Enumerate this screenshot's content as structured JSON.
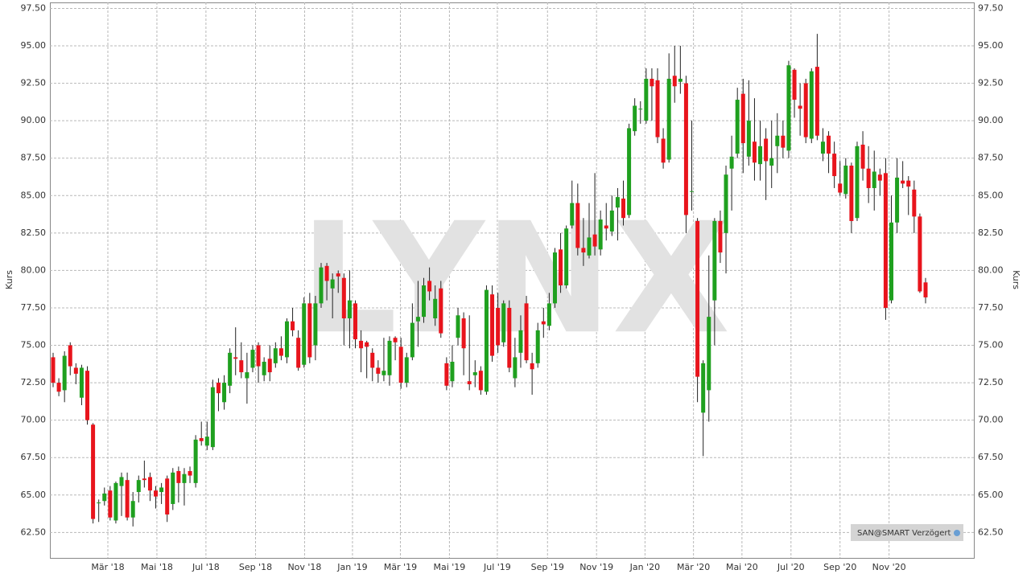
{
  "chart_data": {
    "type": "candlestick",
    "ylabel": "Kurs",
    "y2label": "Kurs",
    "badge": "SAN@SMART Verzögert",
    "watermark": "LYNX",
    "up_color": "#1fa01f",
    "down_color": "#e8141c",
    "grid": true,
    "ylim": [
      60.8,
      97.9
    ],
    "yticks": [
      {
        "value": 62.5,
        "label": "62.50"
      },
      {
        "value": 65,
        "label": "65.00"
      },
      {
        "value": 67.5,
        "label": "67.50"
      },
      {
        "value": 70,
        "label": "70.00"
      },
      {
        "value": 72.5,
        "label": "72.50"
      },
      {
        "value": 75,
        "label": "75.00"
      },
      {
        "value": 77.5,
        "label": "77.50"
      },
      {
        "value": 80,
        "label": "80.00"
      },
      {
        "value": 82.5,
        "label": "82.50"
      },
      {
        "value": 85,
        "label": "85.00"
      },
      {
        "value": 87.5,
        "label": "87.50"
      },
      {
        "value": 90,
        "label": "90.00"
      },
      {
        "value": 92.5,
        "label": "92.50"
      },
      {
        "value": 95,
        "label": "95.00"
      },
      {
        "value": 97.5,
        "label": "97.50"
      }
    ],
    "xticks": [
      {
        "value": 9.6,
        "label": "Mär '18"
      },
      {
        "value": 18.2,
        "label": "Mai '18"
      },
      {
        "value": 26.8,
        "label": "Jul '18"
      },
      {
        "value": 35.5,
        "label": "Sep '18"
      },
      {
        "value": 44.1,
        "label": "Nov '18"
      },
      {
        "value": 52.5,
        "label": "Jan '19"
      },
      {
        "value": 60.9,
        "label": "Mär '19"
      },
      {
        "value": 69.5,
        "label": "Mai '19"
      },
      {
        "value": 77.9,
        "label": "Jul '19"
      },
      {
        "value": 86.7,
        "label": "Sep '19"
      },
      {
        "value": 95.3,
        "label": "Nov '19"
      },
      {
        "value": 103.8,
        "label": "Jan '20"
      },
      {
        "value": 112.3,
        "label": "Mär '20"
      },
      {
        "value": 120.8,
        "label": "Mai '20"
      },
      {
        "value": 129.4,
        "label": "Jul '20"
      },
      {
        "value": 138.0,
        "label": "Sep '20"
      },
      {
        "value": 146.6,
        "label": "Nov '20"
      }
    ],
    "categories": [
      null,
      null,
      null,
      null,
      null,
      null,
      null,
      null,
      null,
      null,
      null,
      null,
      null,
      null,
      null,
      null,
      null,
      null,
      null,
      null,
      null,
      null,
      null,
      null,
      null,
      null,
      null,
      null,
      null,
      null,
      null,
      null,
      null,
      null,
      null,
      null,
      null,
      null,
      null,
      null,
      null,
      null,
      null,
      null,
      null,
      null,
      null,
      null,
      null,
      null,
      null,
      null,
      null,
      null,
      null,
      null,
      null,
      null,
      null,
      null,
      null,
      null,
      null,
      null,
      null,
      null,
      null,
      null,
      null,
      null,
      null,
      null,
      null,
      null,
      null,
      null,
      null,
      null,
      null,
      null,
      null,
      null,
      null,
      null,
      null,
      null,
      null,
      null,
      null,
      null,
      null,
      null,
      null,
      null,
      null,
      null,
      null,
      null,
      null,
      null,
      null,
      null,
      null,
      null,
      null,
      null,
      null,
      null,
      null,
      null,
      null,
      null,
      null,
      null,
      null,
      null,
      null,
      null,
      null,
      null,
      null,
      null,
      null,
      null,
      null,
      null,
      null,
      null,
      null,
      null,
      null,
      null,
      null,
      null,
      null,
      null,
      null,
      null,
      null,
      null,
      null,
      null,
      null,
      null,
      null,
      null,
      null,
      null,
      null,
      null,
      null,
      null,
      null,
      null
    ],
    "open": [
      74.2,
      72.5,
      72.0,
      75.0,
      73.5,
      71.5,
      73.3,
      69.7,
      64.5,
      64.6,
      65.3,
      63.3,
      65.6,
      66.0,
      63.5,
      65.2,
      66.1,
      66.2,
      65.3,
      65.2,
      66.1,
      64.4,
      66.6,
      65.8,
      66.6,
      65.8,
      68.8,
      68.3,
      68.2,
      72.5,
      71.2,
      72.3,
      74.2,
      74.0,
      72.8,
      73.5,
      75.0,
      73.0,
      74.1,
      73.8,
      74.8,
      74.2,
      76.6,
      75.5,
      73.7,
      77.8,
      75.0,
      77.8,
      80.3,
      78.8,
      79.8,
      79.5,
      76.8,
      77.8,
      75.3,
      75.2,
      74.5,
      73.5,
      73.0,
      73.0,
      75.5,
      74.9,
      72.5,
      74.2,
      76.6,
      76.9,
      79.3,
      76.8,
      78.8,
      73.8,
      72.6,
      75.5,
      76.8,
      72.6,
      73.0,
      73.3,
      71.9,
      78.4,
      77.5,
      75.2,
      77.5,
      72.8,
      74.5,
      77.8,
      73.8,
      73.8,
      76.6,
      76.3,
      77.8,
      81.4,
      79.0,
      83.0,
      84.5,
      81.5,
      81.0,
      82.4,
      81.4,
      83.0,
      82.6,
      84.2,
      84.8,
      83.7,
      89.3,
      90.8,
      90.0,
      92.8,
      92.7,
      88.8,
      87.4,
      93.0,
      92.6,
      92.5,
      85.3,
      83.3,
      70.5,
      72.0,
      78.0,
      83.3,
      82.5,
      86.8,
      87.8,
      91.8,
      87.6,
      88.6,
      87.1,
      88.8,
      87.0,
      88.3,
      89.0,
      88.0,
      93.4,
      91.0,
      92.5,
      88.8,
      93.6,
      87.8,
      89.0,
      87.8,
      85.8,
      85.1,
      87.0,
      83.5,
      88.4,
      86.8,
      85.5,
      86.4,
      86.5,
      78.0,
      83.2,
      86.0,
      86.0,
      85.4,
      83.6,
      79.2
    ],
    "high": [
      74.5,
      72.8,
      74.6,
      75.2,
      73.8,
      73.7,
      73.6,
      69.8,
      64.7,
      65.5,
      65.6,
      65.9,
      66.5,
      66.5,
      65.2,
      66.3,
      67.3,
      66.5,
      65.6,
      65.8,
      66.3,
      66.8,
      66.9,
      66.8,
      66.9,
      69.0,
      69.9,
      69.9,
      72.7,
      72.8,
      73.0,
      74.8,
      76.2,
      75.2,
      74.5,
      75.0,
      75.2,
      74.2,
      75.0,
      75.2,
      75.6,
      76.8,
      77.5,
      76.0,
      78.2,
      78.5,
      78.3,
      80.5,
      80.5,
      79.8,
      80.0,
      79.8,
      80.0,
      78.0,
      76.0,
      75.3,
      74.8,
      74.0,
      75.5,
      75.6,
      75.6,
      75.5,
      74.5,
      77.8,
      79.3,
      79.5,
      80.2,
      79.0,
      79.3,
      74.2,
      75.0,
      77.5,
      77.2,
      77.0,
      74.0,
      73.6,
      79.0,
      79.0,
      78.5,
      78.0,
      78.0,
      75.5,
      77.0,
      78.3,
      74.5,
      76.5,
      77.5,
      78.5,
      81.5,
      82.5,
      83.0,
      86.0,
      85.8,
      83.5,
      84.5,
      86.5,
      84.0,
      84.5,
      85.0,
      85.5,
      86.0,
      89.8,
      91.5,
      91.3,
      93.5,
      93.5,
      93.5,
      89.5,
      94.5,
      95.0,
      95.0,
      93.0,
      90.0,
      83.5,
      74.0,
      81.0,
      83.5,
      84.0,
      87.0,
      89.0,
      92.2,
      92.8,
      92.7,
      91.5,
      90.0,
      89.5,
      90.0,
      90.5,
      90.0,
      94.0,
      93.5,
      92.5,
      92.8,
      93.5,
      95.8,
      89.5,
      89.3,
      88.6,
      87.3,
      87.5,
      87.2,
      88.6,
      89.3,
      88.3,
      88.0,
      86.8,
      87.5,
      85.0,
      87.5,
      87.3,
      86.3,
      86.0,
      83.8,
      79.5
    ],
    "low": [
      72.2,
      71.6,
      71.2,
      73.0,
      72.4,
      71.0,
      69.7,
      63.1,
      63.2,
      64.3,
      63.3,
      63.1,
      63.6,
      63.3,
      62.9,
      64.5,
      65.5,
      64.6,
      64.1,
      64.4,
      63.2,
      64.0,
      64.5,
      64.3,
      65.8,
      65.5,
      68.3,
      68.0,
      68.0,
      70.6,
      70.7,
      71.8,
      73.0,
      72.8,
      71.1,
      73.2,
      72.5,
      72.6,
      72.6,
      73.5,
      74.0,
      73.8,
      75.6,
      73.3,
      73.5,
      73.8,
      74.0,
      77.5,
      78.0,
      76.8,
      78.5,
      75.0,
      74.8,
      74.8,
      73.2,
      72.8,
      72.6,
      72.5,
      72.6,
      72.3,
      74.0,
      72.1,
      72.2,
      74.0,
      74.9,
      76.5,
      78.0,
      76.3,
      75.5,
      72.0,
      72.2,
      75.0,
      73.0,
      72.0,
      72.2,
      71.7,
      71.7,
      73.9,
      74.5,
      74.9,
      73.2,
      72.2,
      73.5,
      73.8,
      71.7,
      73.5,
      75.5,
      76.0,
      77.5,
      78.5,
      78.8,
      82.8,
      81.0,
      80.3,
      80.8,
      81.0,
      81.0,
      82.0,
      82.3,
      82.0,
      83.0,
      83.5,
      89.0,
      89.8,
      89.8,
      90.0,
      88.5,
      86.8,
      87.2,
      91.2,
      91.8,
      82.5,
      84.0,
      71.2,
      67.6,
      69.9,
      75.0,
      80.5,
      79.8,
      84.0,
      87.5,
      86.5,
      87.0,
      86.0,
      86.0,
      84.7,
      85.5,
      86.5,
      87.5,
      87.5,
      90.2,
      89.0,
      88.5,
      88.5,
      88.7,
      87.3,
      86.5,
      85.5,
      85.0,
      84.8,
      82.5,
      83.3,
      86.0,
      84.5,
      84.0,
      85.0,
      76.7,
      77.8,
      82.5,
      85.5,
      83.7,
      82.5,
      78.5,
      77.8
    ],
    "close": [
      72.5,
      71.9,
      74.3,
      73.6,
      73.1,
      73.5,
      70.0,
      63.4,
      64.5,
      65.1,
      63.5,
      65.8,
      66.2,
      63.5,
      64.6,
      66.0,
      66.0,
      65.3,
      64.9,
      65.5,
      63.7,
      66.5,
      65.8,
      66.4,
      66.3,
      68.7,
      68.6,
      68.9,
      72.2,
      71.8,
      72.5,
      74.5,
      74.1,
      73.2,
      73.2,
      74.7,
      73.6,
      73.9,
      73.2,
      74.8,
      74.3,
      76.6,
      76.0,
      73.5,
      77.8,
      74.2,
      77.8,
      80.2,
      79.3,
      79.4,
      79.6,
      76.8,
      78.0,
      75.4,
      74.8,
      74.9,
      73.5,
      73.1,
      73.3,
      75.3,
      75.2,
      72.5,
      74.2,
      76.5,
      76.9,
      79.0,
      78.6,
      78.1,
      75.8,
      72.3,
      73.9,
      77.0,
      74.8,
      72.4,
      73.2,
      72.0,
      78.7,
      74.3,
      75.0,
      77.8,
      73.5,
      74.2,
      76.0,
      74.0,
      73.4,
      76.0,
      76.4,
      77.8,
      81.2,
      79.0,
      82.8,
      84.5,
      81.5,
      81.2,
      82.2,
      81.6,
      83.4,
      82.8,
      84.0,
      84.9,
      83.5,
      89.5,
      91.0,
      90.8,
      92.8,
      92.3,
      88.9,
      87.2,
      92.8,
      92.3,
      92.8,
      83.7,
      85.3,
      72.9,
      73.8,
      76.9,
      83.3,
      81.2,
      86.4,
      87.6,
      91.4,
      88.5,
      90.0,
      87.2,
      88.3,
      87.3,
      87.5,
      89.0,
      88.2,
      93.7,
      91.4,
      90.8,
      88.9,
      93.3,
      89.0,
      88.6,
      87.8,
      86.3,
      85.2,
      87.0,
      83.3,
      88.3,
      86.8,
      85.5,
      86.6,
      86.0,
      77.5,
      83.2,
      86.2,
      85.8,
      85.6,
      83.6,
      78.6,
      78.2
    ]
  }
}
